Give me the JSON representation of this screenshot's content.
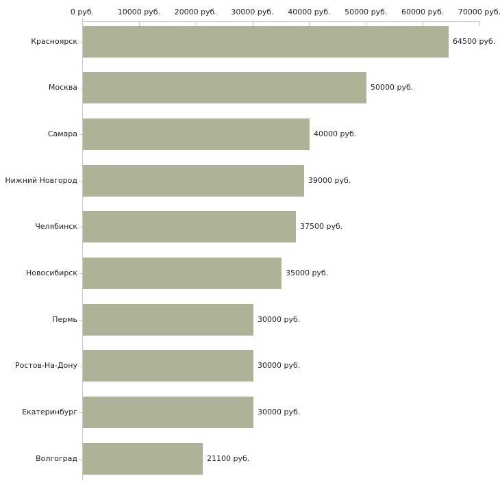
{
  "chart_data": {
    "type": "bar",
    "orientation": "horizontal",
    "title": "",
    "xlabel": "",
    "ylabel": "",
    "categories": [
      "Красноярск",
      "Москва",
      "Самара",
      "Нижний Новгород",
      "Челябинск",
      "Новосибирск",
      "Пермь",
      "Ростов-На-Дону",
      "Екатеринбург",
      "Волгоград"
    ],
    "values": [
      64500,
      50000,
      40000,
      39000,
      37500,
      35000,
      30000,
      30000,
      30000,
      21100
    ],
    "value_labels": [
      "64500 руб.",
      "50000 руб.",
      "40000 руб.",
      "39000 руб.",
      "37500 руб.",
      "35000 руб.",
      "30000 руб.",
      "30000 руб.",
      "30000 руб.",
      "21100 руб."
    ],
    "x_ticks": [
      0,
      10000,
      20000,
      30000,
      40000,
      50000,
      60000,
      70000
    ],
    "x_tick_labels": [
      "0 руб.",
      "10000 руб.",
      "20000 руб.",
      "30000 руб.",
      "40000 руб.",
      "50000 руб.",
      "60000 руб.",
      "70000 руб."
    ],
    "xlim": [
      0,
      70000
    ],
    "grid": false,
    "legend": false,
    "colors": {
      "bar": "#aeb398",
      "axis_line": "#c6c6c6",
      "tick": "#cccc99",
      "text": "#1f1f1f",
      "background": "#ffffff"
    }
  }
}
